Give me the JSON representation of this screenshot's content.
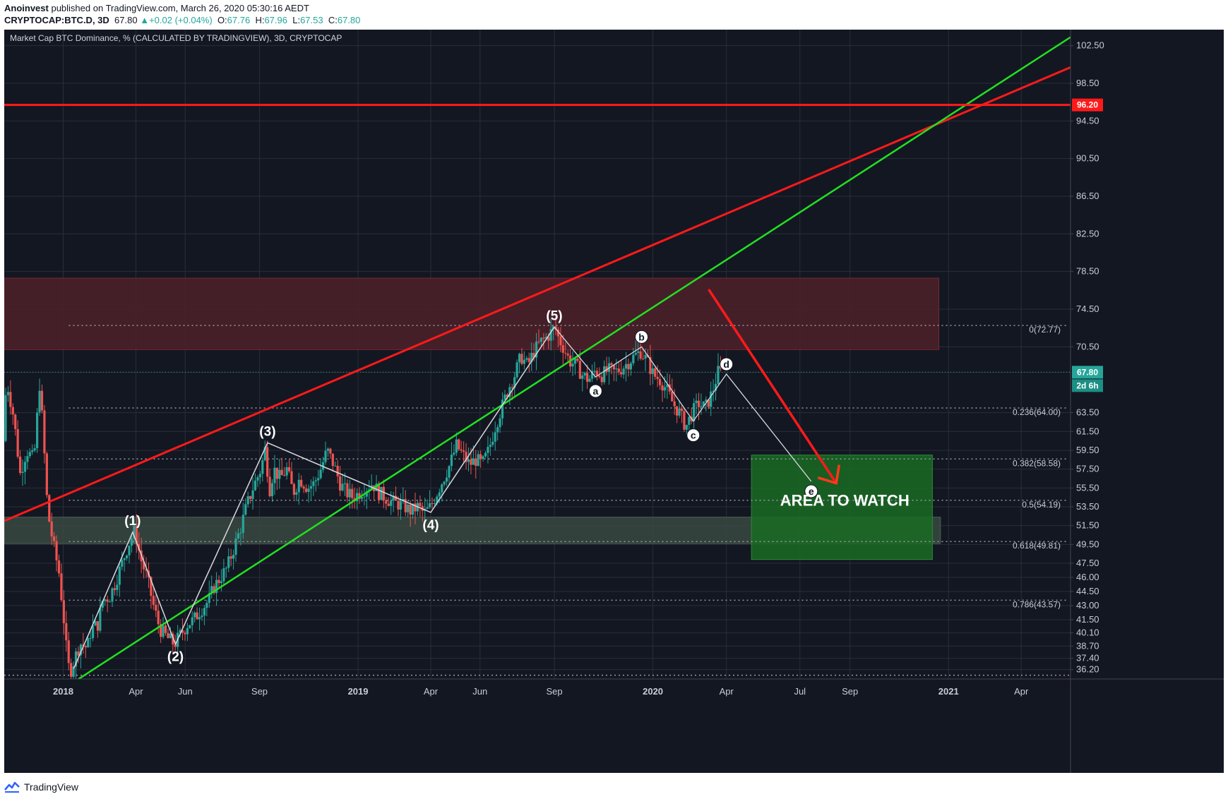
{
  "header": {
    "author": "Anoinvest",
    "published": "published on TradingView.com, March 26, 2020 05:30:16 AEDT",
    "symbol": "CRYPTOCAP:BTC.D, 3D",
    "last": "67.80",
    "change": "+0.02 (+0.04%)",
    "o_label": "O:",
    "o_value": "67.76",
    "h_label": "H:",
    "h_value": "67.96",
    "l_label": "L:",
    "l_value": "67.53",
    "c_label": "C:",
    "c_value": "67.80"
  },
  "footer": {
    "brand": "TradingView"
  },
  "colors": {
    "background": "#131722",
    "up": "#26a69a",
    "down": "#ef5350",
    "resistance": "#ff1a1a",
    "support": "#22e022",
    "zone_top": "#4a2029",
    "zone_bottom": "#37463f",
    "watch_area": "#1a6b23"
  },
  "chart_data": {
    "type": "candlestick",
    "title": "Market Cap BTC Dominance, % (CALCULATED BY TRADINGVIEW), 3D, CRYPTOCAP",
    "x_range": [
      "2017-10-20",
      "2021-06-01"
    ],
    "y_range": [
      35.2,
      104.2
    ],
    "y_ticks": [
      "36.20",
      "37.40",
      "38.70",
      "40.10",
      "41.50",
      "43.00",
      "44.50",
      "46.00",
      "47.50",
      "49.50",
      "51.50",
      "53.50",
      "55.50",
      "57.50",
      "59.50",
      "61.50",
      "63.50",
      "67.80",
      "70.50",
      "74.50",
      "78.50",
      "82.50",
      "86.50",
      "90.50",
      "94.50",
      "96.20",
      "98.50",
      "102.50"
    ],
    "x_ticks": [
      {
        "date": "2018-01-01",
        "label": "2018",
        "bold": true
      },
      {
        "date": "2018-04-01",
        "label": "Apr"
      },
      {
        "date": "2018-06-01",
        "label": "Jun"
      },
      {
        "date": "2018-09-01",
        "label": "Sep"
      },
      {
        "date": "2019-01-01",
        "label": "2019",
        "bold": true
      },
      {
        "date": "2019-04-01",
        "label": "Apr"
      },
      {
        "date": "2019-06-01",
        "label": "Jun"
      },
      {
        "date": "2019-09-01",
        "label": "Sep"
      },
      {
        "date": "2020-01-01",
        "label": "2020",
        "bold": true
      },
      {
        "date": "2020-04-01",
        "label": "Apr"
      },
      {
        "date": "2020-07-01",
        "label": "Jul"
      },
      {
        "date": "2020-09-01",
        "label": "Sep"
      },
      {
        "date": "2021-01-01",
        "label": "2021",
        "bold": true
      },
      {
        "date": "2021-04-01",
        "label": "Apr"
      }
    ],
    "price_path": [
      [
        "2017-10-20",
        60.5
      ],
      [
        "2017-10-24",
        67.0
      ],
      [
        "2017-11-02",
        63.0
      ],
      [
        "2017-11-10",
        57.0
      ],
      [
        "2017-11-18",
        59.5
      ],
      [
        "2017-11-27",
        58.5
      ],
      [
        "2017-12-04",
        66.5
      ],
      [
        "2017-12-08",
        62.0
      ],
      [
        "2017-12-14",
        53.0
      ],
      [
        "2017-12-20",
        50.0
      ],
      [
        "2017-12-28",
        46.5
      ],
      [
        "2018-01-03",
        41.5
      ],
      [
        "2018-01-08",
        36.6
      ],
      [
        "2018-01-12",
        36.2
      ],
      [
        "2018-01-17",
        37.5
      ],
      [
        "2018-01-23",
        39.0
      ],
      [
        "2018-02-01",
        38.5
      ],
      [
        "2018-02-06",
        40.5
      ],
      [
        "2018-02-14",
        41.0
      ],
      [
        "2018-02-20",
        43.5
      ],
      [
        "2018-03-01",
        44.0
      ],
      [
        "2018-03-08",
        45.5
      ],
      [
        "2018-03-16",
        47.5
      ],
      [
        "2018-03-24",
        49.5
      ],
      [
        "2018-04-01",
        51.0
      ],
      [
        "2018-04-08",
        48.0
      ],
      [
        "2018-04-16",
        46.0
      ],
      [
        "2018-04-24",
        43.0
      ],
      [
        "2018-05-02",
        40.5
      ],
      [
        "2018-05-12",
        39.5
      ],
      [
        "2018-05-20",
        38.9
      ],
      [
        "2018-05-28",
        40.0
      ],
      [
        "2018-06-05",
        41.0
      ],
      [
        "2018-06-13",
        41.5
      ],
      [
        "2018-06-21",
        42.5
      ],
      [
        "2018-07-01",
        43.5
      ],
      [
        "2018-07-08",
        45.0
      ],
      [
        "2018-07-16",
        46.0
      ],
      [
        "2018-07-24",
        47.0
      ],
      [
        "2018-08-01",
        49.0
      ],
      [
        "2018-08-09",
        51.0
      ],
      [
        "2018-08-17",
        53.5
      ],
      [
        "2018-08-25",
        55.5
      ],
      [
        "2018-09-04",
        57.5
      ],
      [
        "2018-09-10",
        60.0
      ],
      [
        "2018-09-14",
        55.0
      ],
      [
        "2018-09-20",
        57.5
      ],
      [
        "2018-09-28",
        56.5
      ],
      [
        "2018-10-06",
        57.5
      ],
      [
        "2018-10-14",
        55.0
      ],
      [
        "2018-10-22",
        56.5
      ],
      [
        "2018-11-01",
        55.5
      ],
      [
        "2018-11-09",
        56.0
      ],
      [
        "2018-11-17",
        57.5
      ],
      [
        "2018-11-25",
        59.5
      ],
      [
        "2018-12-03",
        58.0
      ],
      [
        "2018-12-11",
        56.0
      ],
      [
        "2018-12-19",
        55.0
      ],
      [
        "2018-12-27",
        54.5
      ],
      [
        "2019-01-04",
        55.0
      ],
      [
        "2019-01-12",
        55.5
      ],
      [
        "2019-01-20",
        56.0
      ],
      [
        "2019-01-28",
        55.0
      ],
      [
        "2019-02-05",
        54.5
      ],
      [
        "2019-02-13",
        54.0
      ],
      [
        "2019-02-21",
        53.8
      ],
      [
        "2019-03-01",
        53.5
      ],
      [
        "2019-03-09",
        53.0
      ],
      [
        "2019-03-17",
        53.5
      ],
      [
        "2019-03-25",
        52.8
      ],
      [
        "2019-04-02",
        53.5
      ],
      [
        "2019-04-10",
        55.0
      ],
      [
        "2019-04-18",
        56.5
      ],
      [
        "2019-04-26",
        58.0
      ],
      [
        "2019-05-04",
        60.0
      ],
      [
        "2019-05-12",
        59.0
      ],
      [
        "2019-05-20",
        58.0
      ],
      [
        "2019-05-28",
        58.5
      ],
      [
        "2019-06-05",
        58.0
      ],
      [
        "2019-06-13",
        59.5
      ],
      [
        "2019-06-21",
        62.0
      ],
      [
        "2019-06-29",
        64.0
      ],
      [
        "2019-07-07",
        66.0
      ],
      [
        "2019-07-15",
        67.5
      ],
      [
        "2019-07-23",
        69.5
      ],
      [
        "2019-07-31",
        68.5
      ],
      [
        "2019-08-08",
        70.0
      ],
      [
        "2019-08-16",
        71.0
      ],
      [
        "2019-08-24",
        71.5
      ],
      [
        "2019-09-03",
        72.6
      ],
      [
        "2019-09-07",
        71.5
      ],
      [
        "2019-09-13",
        70.5
      ],
      [
        "2019-09-21",
        69.0
      ],
      [
        "2019-09-29",
        68.5
      ],
      [
        "2019-10-07",
        67.5
      ],
      [
        "2019-10-15",
        67.0
      ],
      [
        "2019-10-23",
        68.0
      ],
      [
        "2019-10-31",
        67.5
      ],
      [
        "2019-11-08",
        68.0
      ],
      [
        "2019-11-16",
        67.8
      ],
      [
        "2019-11-24",
        68.2
      ],
      [
        "2019-12-02",
        68.8
      ],
      [
        "2019-12-10",
        69.5
      ],
      [
        "2019-12-18",
        70.0
      ],
      [
        "2019-12-26",
        69.0
      ],
      [
        "2020-01-03",
        67.5
      ],
      [
        "2020-01-11",
        67.0
      ],
      [
        "2020-01-19",
        66.0
      ],
      [
        "2020-01-27",
        64.5
      ],
      [
        "2020-02-04",
        63.5
      ],
      [
        "2020-02-12",
        62.0
      ],
      [
        "2020-02-20",
        63.5
      ],
      [
        "2020-02-28",
        64.5
      ],
      [
        "2020-03-07",
        64.0
      ],
      [
        "2020-03-15",
        65.5
      ],
      [
        "2020-03-23",
        67.8
      ]
    ],
    "waves": [
      {
        "label": "(1)",
        "date": "2018-03-28",
        "value": 50.8,
        "pos": "above"
      },
      {
        "label": "(2)",
        "date": "2018-05-20",
        "value": 38.9,
        "pos": "below"
      },
      {
        "label": "(3)",
        "date": "2018-09-11",
        "value": 60.3,
        "pos": "above"
      },
      {
        "label": "(4)",
        "date": "2019-04-01",
        "value": 52.9,
        "pos": "below"
      },
      {
        "label": "(5)",
        "date": "2019-09-01",
        "value": 72.6,
        "pos": "above"
      }
    ],
    "wave_path": [
      [
        "2018-01-14",
        36.3
      ],
      [
        "2018-03-28",
        50.8
      ],
      [
        "2018-05-20",
        38.9
      ],
      [
        "2018-09-11",
        60.3
      ],
      [
        "2019-04-01",
        52.9
      ],
      [
        "2019-09-01",
        72.6
      ]
    ],
    "correction": [
      {
        "label": "a",
        "date": "2019-10-22",
        "value": 67.3
      },
      {
        "label": "b",
        "date": "2019-12-18",
        "value": 70.5
      },
      {
        "label": "c",
        "date": "2020-02-20",
        "value": 62.6
      },
      {
        "label": "d",
        "date": "2020-04-01",
        "value": 67.6
      },
      {
        "label": "e",
        "date": "2020-07-15",
        "value": 56.2
      }
    ],
    "fib_levels": [
      {
        "ratio": "0",
        "value": 72.77,
        "label": "0(72.77)"
      },
      {
        "ratio": "0.236",
        "value": 64.0,
        "label": "0.236(64.00)"
      },
      {
        "ratio": "0.382",
        "value": 58.58,
        "label": "0.382(58.58)"
      },
      {
        "ratio": "0.5",
        "value": 54.19,
        "label": "0.5(54.19)"
      },
      {
        "ratio": "0.618",
        "value": 49.81,
        "label": "0.618(49.81)"
      },
      {
        "ratio": "0.786",
        "value": 43.57,
        "label": "0.786(43.57)"
      }
    ],
    "fib_start": "2018-01-08",
    "zones": [
      {
        "name": "supply",
        "from": "2017-10-20",
        "to": "2020-12-20",
        "high": 77.8,
        "low": 70.2
      },
      {
        "name": "demand",
        "from": "2017-10-20",
        "to": "2020-12-22",
        "high": 52.4,
        "low": 49.6
      }
    ],
    "watch_area": {
      "from": "2020-05-02",
      "to": "2020-12-12",
      "high": 59.0,
      "low": 47.9,
      "label": "AREA TO WATCH"
    },
    "resistance_line": [
      [
        "2017-10-20",
        52.0
      ],
      [
        "2021-06-01",
        100.2
      ]
    ],
    "support_line": [
      [
        "2018-01-20",
        35.2
      ],
      [
        "2021-06-01",
        103.4
      ]
    ],
    "horizontal_level": 96.2,
    "projection_arrow": [
      [
        "2020-03-10",
        76.6
      ],
      [
        "2020-08-15",
        56.0
      ]
    ],
    "current_price": {
      "value": 67.8,
      "label": "67.80",
      "countdown": "2d 6h"
    }
  }
}
